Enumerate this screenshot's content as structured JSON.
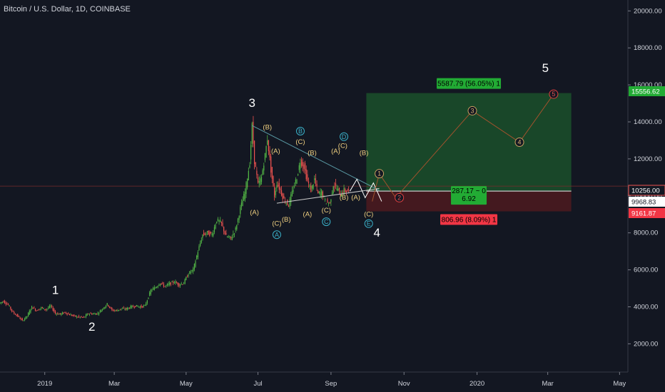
{
  "chart_data": {
    "type": "candlestick",
    "title": "Bitcoin / U.S. Dollar, 1D, COINBASE",
    "x_ticks": [
      "2019",
      "Mar",
      "May",
      "Jul",
      "Sep",
      "Nov",
      "2020",
      "Mar",
      "May"
    ],
    "y_ticks": [
      "2000.00",
      "4000.00",
      "6000.00",
      "8000.00",
      "10000.00",
      "12000.00",
      "14000.00",
      "16000.00",
      "18000.00",
      "20000.00"
    ],
    "ylim": [
      0,
      20600
    ],
    "price_series": [
      [
        "2018-11-24",
        4200
      ],
      [
        "2018-11-28",
        4300
      ],
      [
        "2018-12-02",
        4100
      ],
      [
        "2018-12-06",
        3700
      ],
      [
        "2018-12-10",
        3500
      ],
      [
        "2018-12-14",
        3250
      ],
      [
        "2018-12-18",
        3500
      ],
      [
        "2018-12-22",
        4000
      ],
      [
        "2018-12-26",
        3800
      ],
      [
        "2018-12-30",
        3950
      ],
      [
        "2019-01-03",
        3850
      ],
      [
        "2019-01-07",
        4050
      ],
      [
        "2019-01-11",
        3650
      ],
      [
        "2019-01-15",
        3600
      ],
      [
        "2019-01-19",
        3700
      ],
      [
        "2019-01-23",
        3580
      ],
      [
        "2019-01-27",
        3500
      ],
      [
        "2019-01-31",
        3450
      ],
      [
        "2019-02-04",
        3420
      ],
      [
        "2019-02-08",
        3640
      ],
      [
        "2019-02-12",
        3620
      ],
      [
        "2019-02-16",
        3640
      ],
      [
        "2019-02-20",
        3900
      ],
      [
        "2019-02-24",
        4150
      ],
      [
        "2019-02-28",
        3820
      ],
      [
        "2019-03-04",
        3800
      ],
      [
        "2019-03-08",
        3900
      ],
      [
        "2019-03-12",
        3880
      ],
      [
        "2019-03-16",
        4000
      ],
      [
        "2019-03-20",
        4050
      ],
      [
        "2019-03-24",
        4000
      ],
      [
        "2019-03-28",
        4050
      ],
      [
        "2019-04-02",
        4880
      ],
      [
        "2019-04-06",
        5050
      ],
      [
        "2019-04-10",
        5300
      ],
      [
        "2019-04-14",
        5100
      ],
      [
        "2019-04-18",
        5250
      ],
      [
        "2019-04-22",
        5350
      ],
      [
        "2019-04-26",
        5200
      ],
      [
        "2019-04-30",
        5300
      ],
      [
        "2019-05-04",
        5800
      ],
      [
        "2019-05-08",
        6000
      ],
      [
        "2019-05-12",
        7000
      ],
      [
        "2019-05-16",
        7900
      ],
      [
        "2019-05-20",
        8000
      ],
      [
        "2019-05-24",
        7900
      ],
      [
        "2019-05-28",
        8700
      ],
      [
        "2019-06-01",
        8500
      ],
      [
        "2019-06-05",
        7800
      ],
      [
        "2019-06-09",
        7700
      ],
      [
        "2019-06-13",
        8200
      ],
      [
        "2019-06-17",
        9300
      ],
      [
        "2019-06-21",
        10200
      ],
      [
        "2019-06-25",
        11800
      ],
      [
        "2019-06-27",
        13800
      ],
      [
        "2019-06-29",
        11900
      ],
      [
        "2019-07-02",
        10600
      ],
      [
        "2019-07-05",
        11000
      ],
      [
        "2019-07-08",
        12200
      ],
      [
        "2019-07-10",
        13100
      ],
      [
        "2019-07-13",
        11400
      ],
      [
        "2019-07-16",
        10000
      ],
      [
        "2019-07-18",
        10700
      ],
      [
        "2019-07-21",
        10300
      ],
      [
        "2019-07-24",
        9800
      ],
      [
        "2019-07-28",
        9500
      ],
      [
        "2019-08-01",
        10400
      ],
      [
        "2019-08-04",
        11000
      ],
      [
        "2019-08-07",
        11900
      ],
      [
        "2019-08-10",
        11600
      ],
      [
        "2019-08-13",
        10800
      ],
      [
        "2019-08-16",
        10300
      ],
      [
        "2019-08-19",
        10900
      ],
      [
        "2019-08-22",
        10100
      ],
      [
        "2019-08-25",
        10200
      ],
      [
        "2019-08-28",
        9700
      ],
      [
        "2019-09-01",
        9600
      ],
      [
        "2019-09-04",
        10600
      ],
      [
        "2019-09-07",
        10400
      ],
      [
        "2019-09-10",
        10100
      ],
      [
        "2019-09-13",
        10300
      ],
      [
        "2019-09-16",
        10250
      ]
    ],
    "triangle": {
      "upper": [
        [
          "2019-06-26",
          13800
        ],
        [
          "2019-10-12",
          10300
        ]
      ],
      "lower": [
        [
          "2019-07-17",
          9600
        ],
        [
          "2019-10-12",
          10400
        ]
      ]
    },
    "projection_zigzag": [
      [
        "2019-09-17",
        10250
      ],
      [
        "2019-09-23",
        10900
      ],
      [
        "2019-09-30",
        9900
      ],
      [
        "2019-10-07",
        10700
      ],
      [
        "2019-10-14",
        9700
      ]
    ],
    "forecast_path": [
      [
        "2019-10-06",
        9700
      ],
      [
        "2019-10-12",
        11200
      ],
      [
        "2019-10-26",
        9900
      ],
      [
        "2019-12-30",
        14600
      ],
      [
        "2020-02-08",
        12900
      ],
      [
        "2020-03-08",
        15500
      ]
    ],
    "forecast_points": [
      {
        "label": "1",
        "date": "2019-10-12",
        "price": 11200
      },
      {
        "label": "2",
        "date": "2019-10-29",
        "price": 9900
      },
      {
        "label": "3",
        "date": "2019-12-30",
        "price": 14600
      },
      {
        "label": "4",
        "date": "2020-02-08",
        "price": 12900
      },
      {
        "label": "5",
        "date": "2020-03-08",
        "price": 15500
      }
    ],
    "wave_labels_major": [
      {
        "label": "1",
        "date": "2019-01-10",
        "price": 4700
      },
      {
        "label": "2",
        "date": "2019-02-10",
        "price": 2700
      },
      {
        "label": "3",
        "date": "2019-06-26",
        "price": 14800
      },
      {
        "label": "4",
        "date": "2019-10-10",
        "price": 7800
      },
      {
        "label": "5",
        "date": "2020-03-01",
        "price": 16700
      }
    ],
    "wave_labels_minor": [
      {
        "label": "(B)",
        "date": "2019-07-09",
        "price": 13600
      },
      {
        "label": "(A)",
        "date": "2019-07-16",
        "price": 12300
      },
      {
        "label": "(A)",
        "date": "2019-06-28",
        "price": 9000
      },
      {
        "label": "(C)",
        "date": "2019-07-17",
        "price": 8400
      },
      {
        "label": "(B)",
        "date": "2019-07-25",
        "price": 8600
      },
      {
        "label": "(C)",
        "date": "2019-08-06",
        "price": 12800
      },
      {
        "label": "(B)",
        "date": "2019-08-16",
        "price": 12200
      },
      {
        "label": "(A)",
        "date": "2019-08-12",
        "price": 8900
      },
      {
        "label": "(C)",
        "date": "2019-08-28",
        "price": 9100
      },
      {
        "label": "(A)",
        "date": "2019-09-05",
        "price": 12300
      },
      {
        "label": "(C)",
        "date": "2019-09-11",
        "price": 12600
      },
      {
        "label": "(B)",
        "date": "2019-09-12",
        "price": 9800
      },
      {
        "label": "(B)",
        "date": "2019-09-29",
        "price": 12200
      },
      {
        "label": "(A)",
        "date": "2019-09-22",
        "price": 9800
      },
      {
        "label": "(C)",
        "date": "2019-10-03",
        "price": 8900
      }
    ],
    "wave_labels_circled": [
      {
        "label": "A",
        "date": "2019-07-17",
        "price": 7900
      },
      {
        "label": "B",
        "date": "2019-08-06",
        "price": 13500
      },
      {
        "label": "C",
        "date": "2019-08-28",
        "price": 8600
      },
      {
        "label": "D",
        "date": "2019-09-12",
        "price": 13200
      },
      {
        "label": "E",
        "date": "2019-10-03",
        "price": 8500
      }
    ],
    "position": {
      "start": "2019-10-01",
      "end": "2020-03-23",
      "entry": 10256,
      "target": 15556.62,
      "stop": 9161.87,
      "target_label": "5587.79 (56.05%) 1",
      "stop_label": "806.96 (8.09%) 1",
      "ratio_line1": "287.17 ~ 0",
      "ratio_line2": "6.92"
    },
    "price_labels": {
      "target": "15556.62",
      "entry": "10256.00",
      "last": "9968.83",
      "stop": "9161.87"
    },
    "last_price": 9968.83,
    "colors": {
      "background": "#131722",
      "up": "#26a69a",
      "up_candle": "#53b846",
      "down": "#ef5350",
      "wave_minor": "#f0d080",
      "wave_circled": "#3ab0c8",
      "target_zone": "#1b4d2a",
      "stop_zone": "#4a1a1f",
      "target_tag": "#22ab34",
      "stop_tag": "#f23645"
    }
  }
}
